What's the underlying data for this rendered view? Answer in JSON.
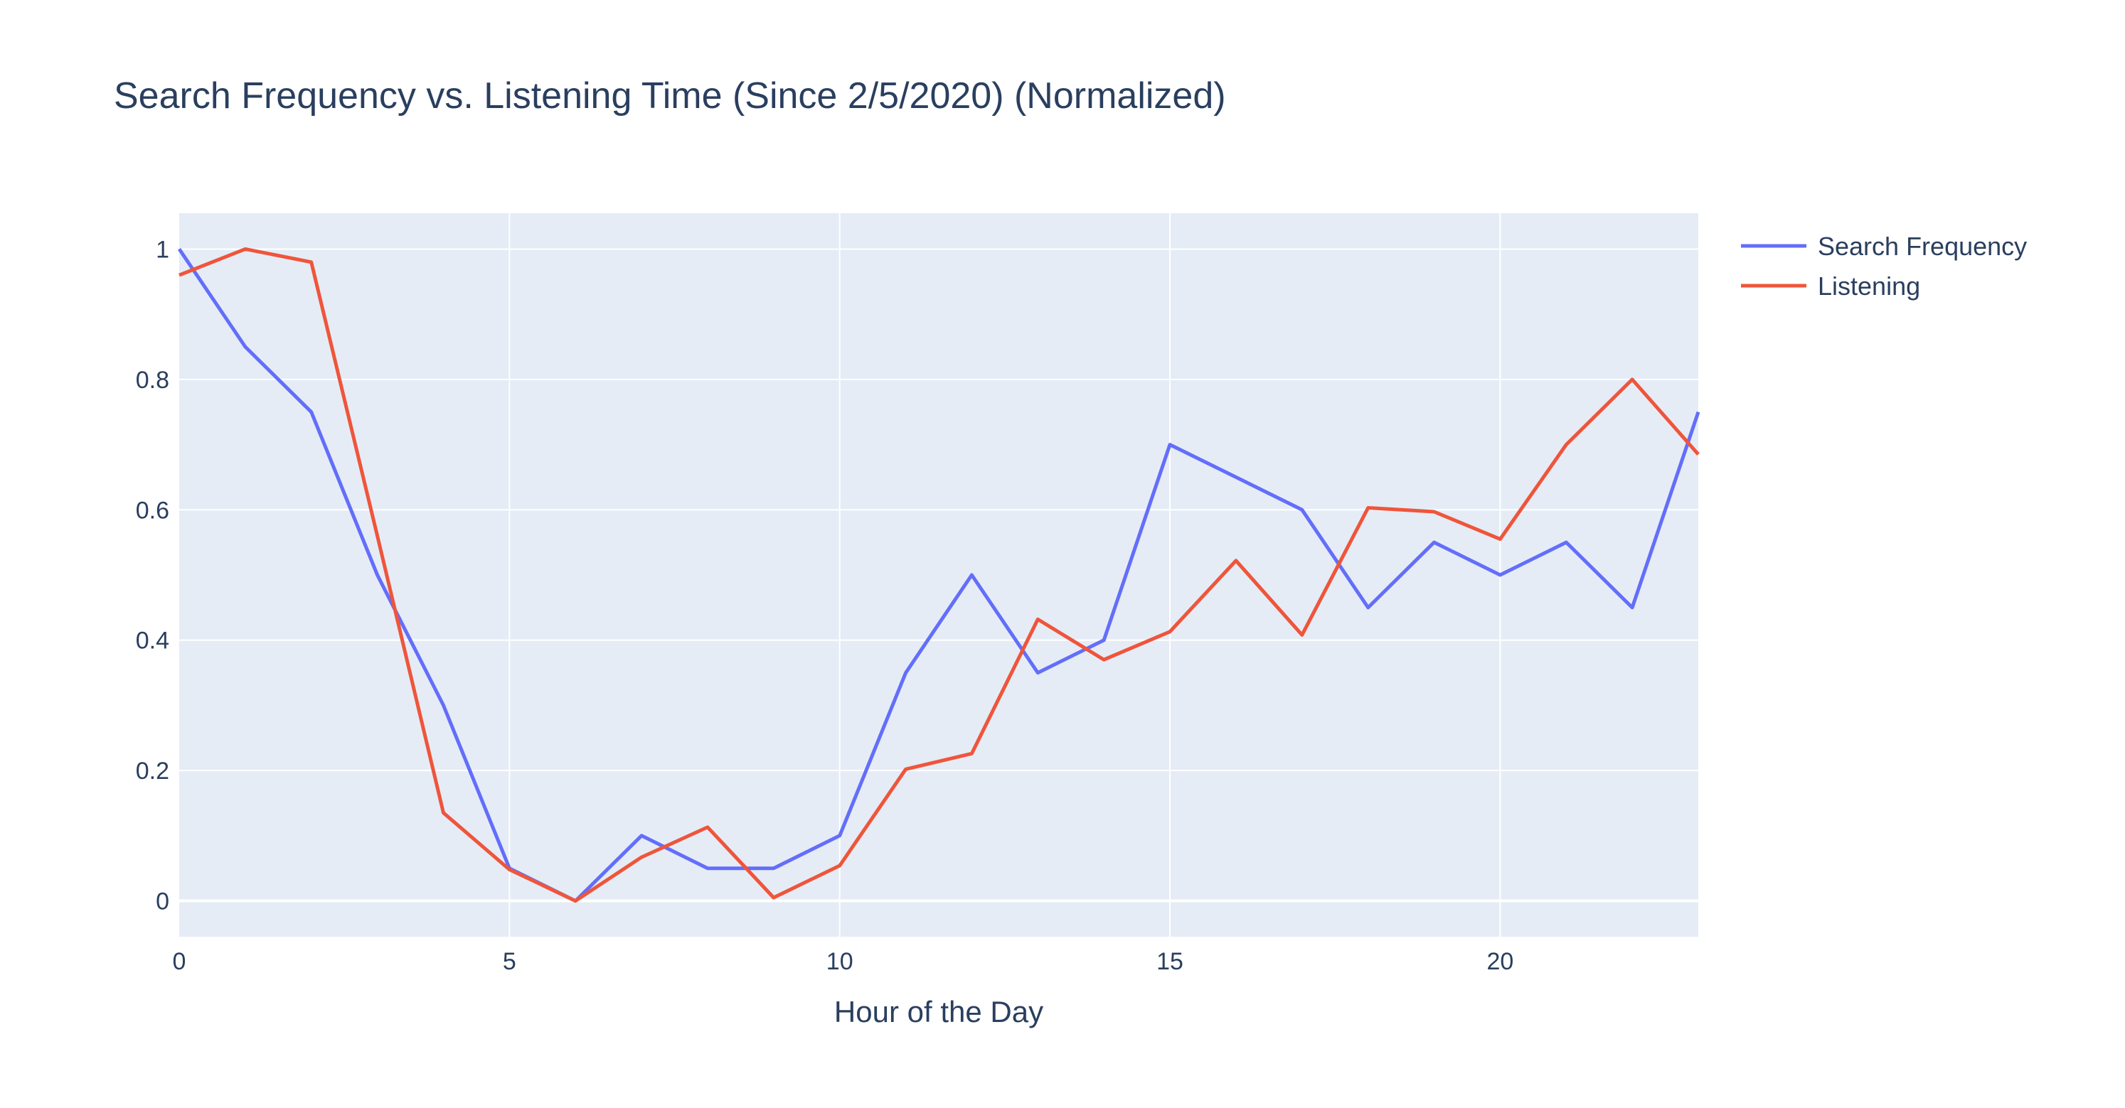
{
  "chart_data": {
    "type": "line",
    "title": "Search Frequency vs. Listening Time (Since 2/5/2020) (Normalized)",
    "xlabel": "Hour of the Day",
    "ylabel": "",
    "x": [
      0,
      1,
      2,
      3,
      4,
      5,
      6,
      7,
      8,
      9,
      10,
      11,
      12,
      13,
      14,
      15,
      16,
      17,
      18,
      19,
      20,
      21,
      22,
      23
    ],
    "xlim": [
      0,
      23
    ],
    "ylim": [
      -0.055,
      1.055
    ],
    "x_ticks": [
      0,
      5,
      10,
      15,
      20
    ],
    "x_tick_labels": [
      "0",
      "5",
      "10",
      "15",
      "20"
    ],
    "y_ticks": [
      0,
      0.2,
      0.4,
      0.6,
      0.8,
      1
    ],
    "y_tick_labels": [
      "0",
      "0.2",
      "0.4",
      "0.6",
      "0.8",
      "1"
    ],
    "grid": true,
    "legend_position": "top-right",
    "plot_background": "#e5ecf6",
    "series": [
      {
        "name": "Search Frequency",
        "color": "#636efa",
        "values": [
          1.0,
          0.85,
          0.75,
          0.5,
          0.3,
          0.05,
          0.0,
          0.1,
          0.05,
          0.05,
          0.1,
          0.35,
          0.5,
          0.35,
          0.4,
          0.7,
          0.65,
          0.6,
          0.45,
          0.55,
          0.5,
          0.55,
          0.45,
          0.75
        ]
      },
      {
        "name": "Listening",
        "color": "#ef553b",
        "values": [
          0.96,
          1.0,
          0.98,
          0.56,
          0.135,
          0.048,
          0.0,
          0.067,
          0.113,
          0.005,
          0.054,
          0.202,
          0.226,
          0.432,
          0.37,
          0.413,
          0.522,
          0.408,
          0.603,
          0.597,
          0.555,
          0.7,
          0.8,
          0.685
        ]
      }
    ]
  }
}
